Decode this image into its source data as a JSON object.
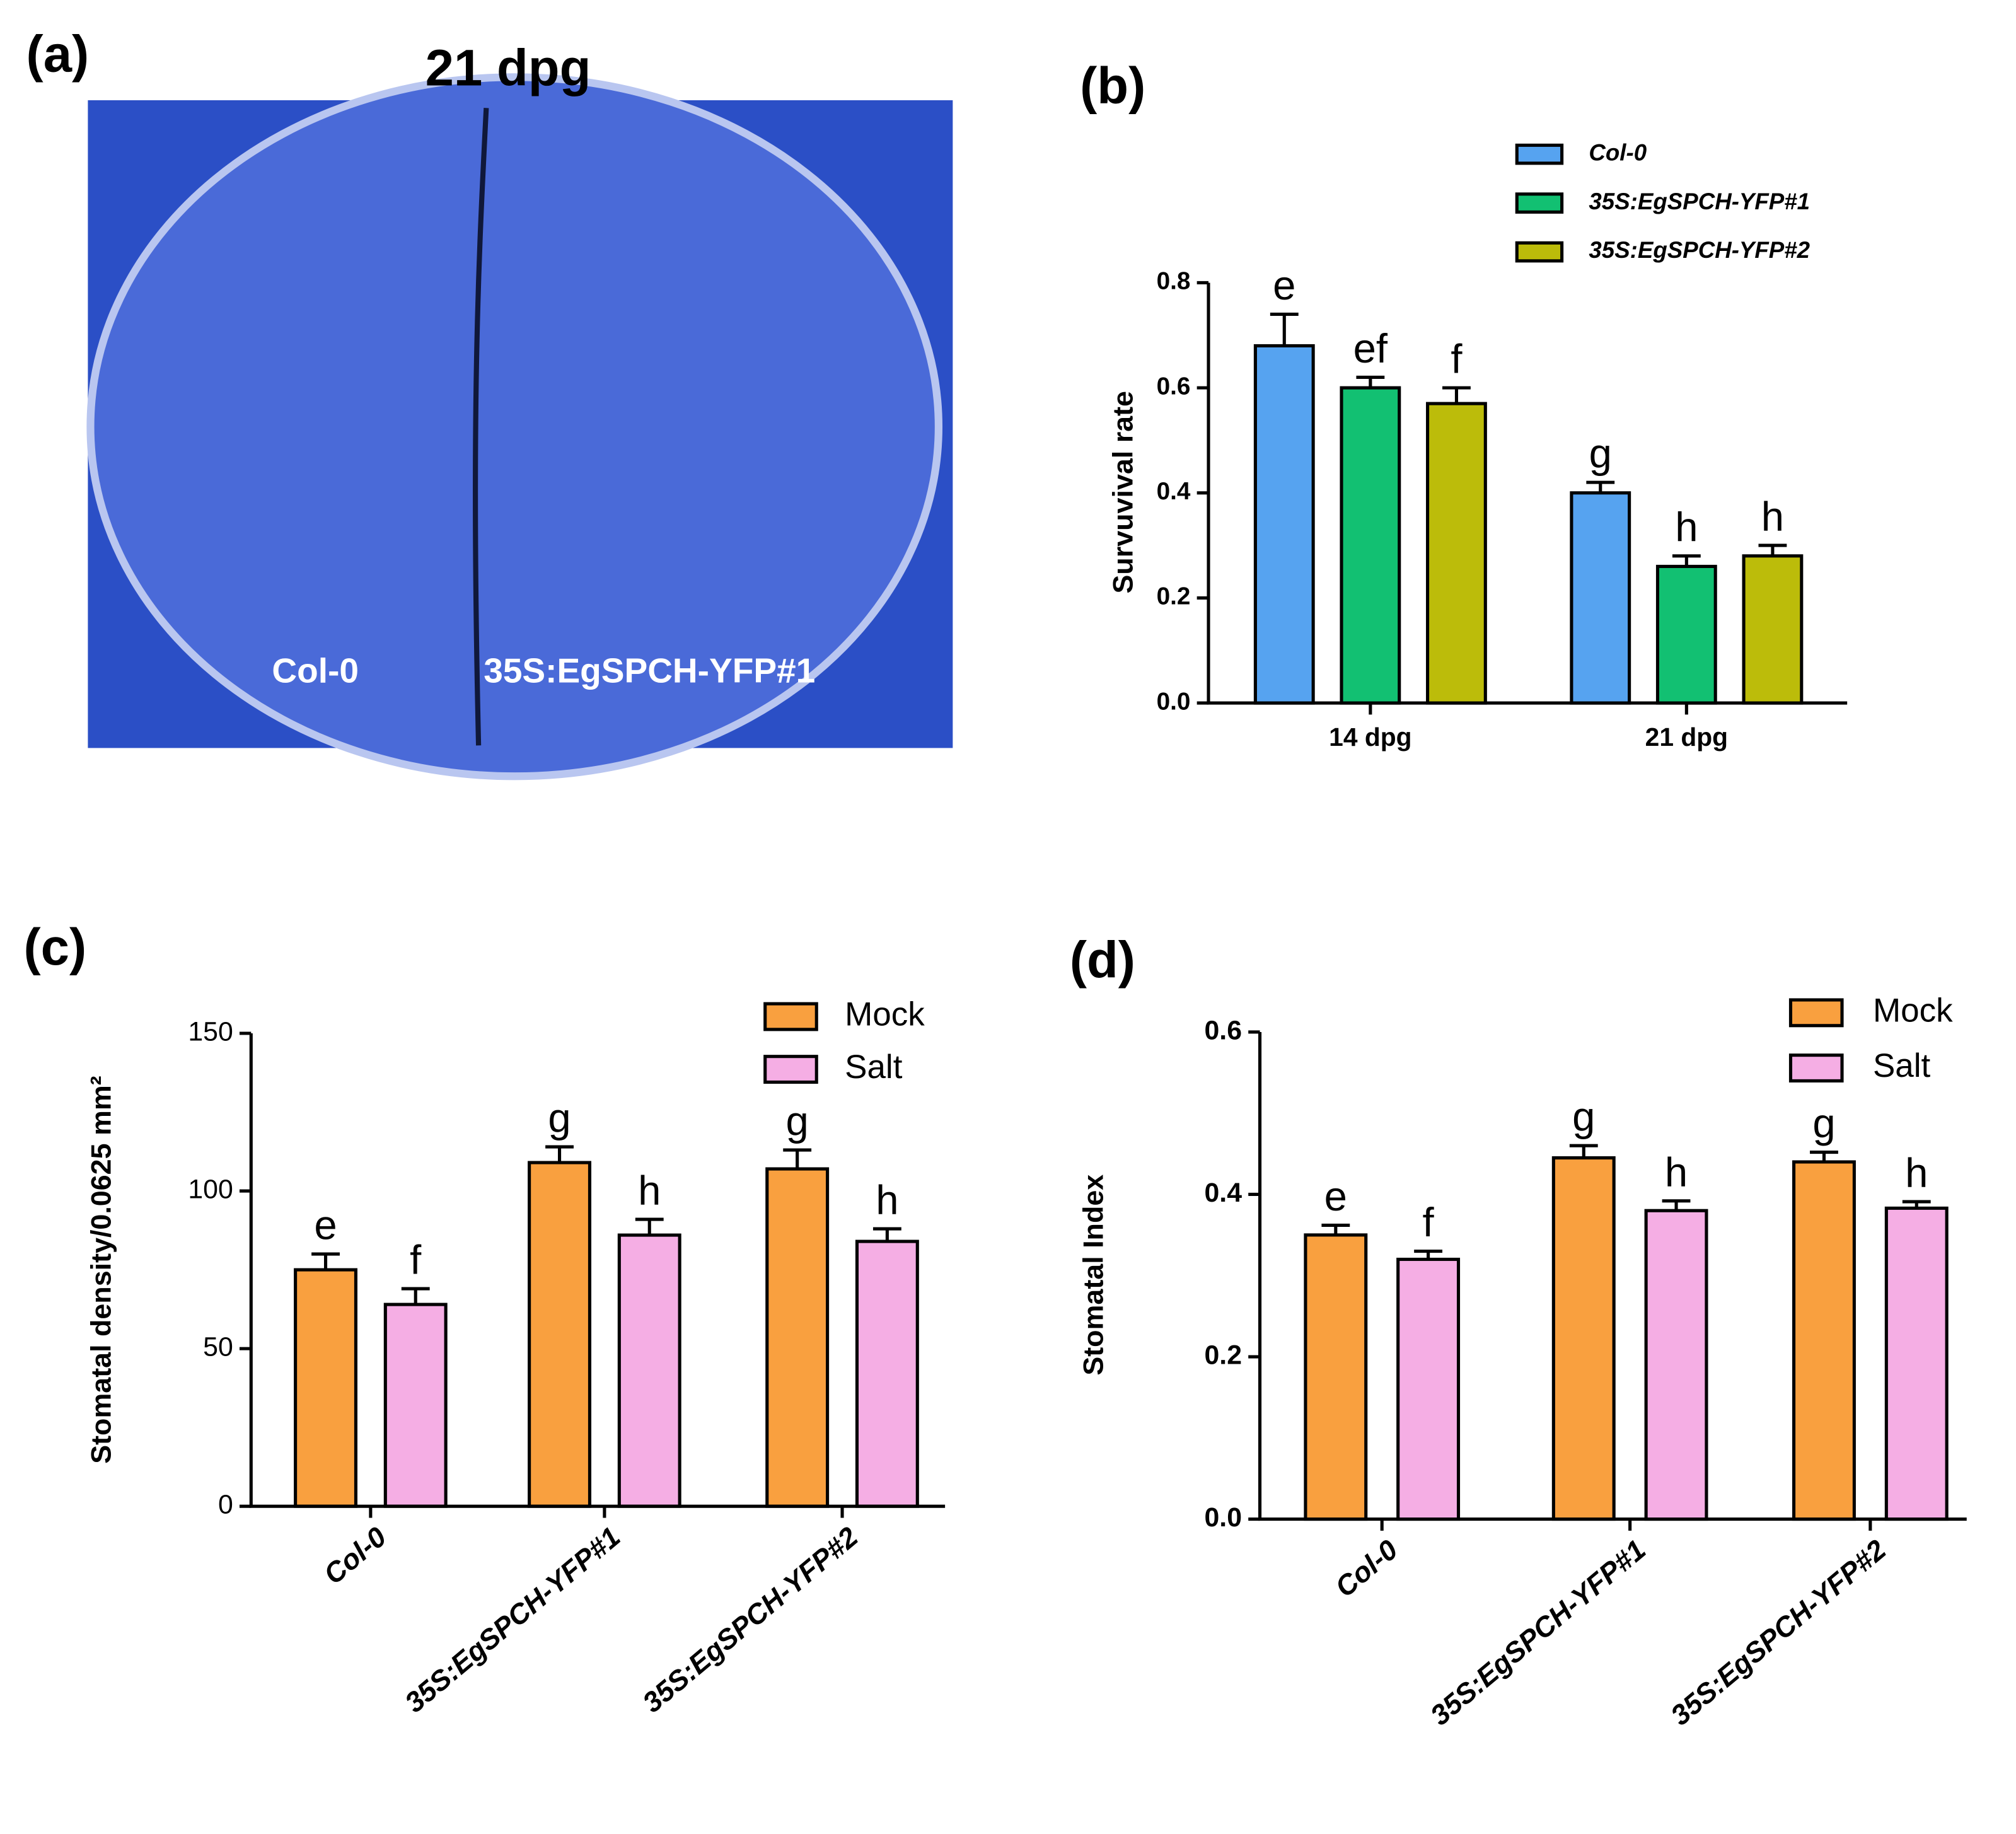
{
  "photo": {
    "label": "(a)",
    "title": "21 dpg",
    "captions": [
      "Col-0",
      "35S:EgSPCH-YFP#1"
    ]
  },
  "chart_data": [
    {
      "type": "bar",
      "panel_label": "(b)",
      "y_label": "Survuvival rate",
      "categories": [
        "14 dpg",
        "21 dpg"
      ],
      "series": [
        {
          "name": "Col-0",
          "color": "#56a3f0",
          "values": [
            0.68,
            0.4
          ],
          "errors": [
            0.06,
            0.02
          ],
          "letters": [
            "e",
            "g"
          ]
        },
        {
          "name": "35S:EgSPCH-YFP#1",
          "color": "#12c072",
          "values": [
            0.6,
            0.26
          ],
          "errors": [
            0.02,
            0.02
          ],
          "letters": [
            "ef",
            "h"
          ]
        },
        {
          "name": "35S:EgSPCH-YFP#2",
          "color": "#bcbc0a",
          "values": [
            0.57,
            0.28
          ],
          "errors": [
            0.03,
            0.02
          ],
          "letters": [
            "f",
            "h"
          ]
        }
      ],
      "ylim": [
        0,
        0.8
      ],
      "yticks": [
        {
          "value": 0,
          "label": "0.0"
        },
        0.2,
        0.4,
        0.6,
        0.8
      ]
    },
    {
      "type": "bar",
      "panel_label": "(c)",
      "y_label": "Stomatal density/0.0625 mm²",
      "categories": [
        "Col-0",
        "35S:EgSPCH-YFP#1",
        "35S:EgSPCH-YFP#2"
      ],
      "series": [
        {
          "name": "Mock",
          "color": "#f9a03f",
          "values": [
            75,
            109,
            107
          ],
          "errors": [
            5,
            5,
            6
          ],
          "letters": [
            "e",
            "g",
            "g"
          ]
        },
        {
          "name": "Salt",
          "color": "#f5aee4",
          "values": [
            64,
            86,
            84
          ],
          "errors": [
            5,
            5,
            4
          ],
          "letters": [
            "f",
            "h",
            "h"
          ]
        }
      ],
      "ylim": [
        0,
        150
      ],
      "yticks": [
        0,
        50,
        100,
        150
      ]
    },
    {
      "type": "bar",
      "panel_label": "(d)",
      "y_label": "Stomatal Index",
      "categories": [
        "Col-0",
        "35S:EgSPCH-YFP#1",
        "35S:EgSPCH-YFP#2"
      ],
      "series": [
        {
          "name": "Mock",
          "color": "#f9a03f",
          "values": [
            0.35,
            0.445,
            0.44
          ],
          "errors": [
            0.012,
            0.015,
            0.012
          ],
          "letters": [
            "e",
            "g",
            "g"
          ]
        },
        {
          "name": "Salt",
          "color": "#f5aee4",
          "values": [
            0.32,
            0.38,
            0.383
          ],
          "errors": [
            0.01,
            0.012,
            0.008
          ],
          "letters": [
            "f",
            "h",
            "h"
          ]
        }
      ],
      "ylim": [
        0,
        0.6
      ],
      "yticks": [
        {
          "value": 0,
          "label": "0.0"
        },
        0.2,
        0.4,
        0.6
      ]
    }
  ]
}
